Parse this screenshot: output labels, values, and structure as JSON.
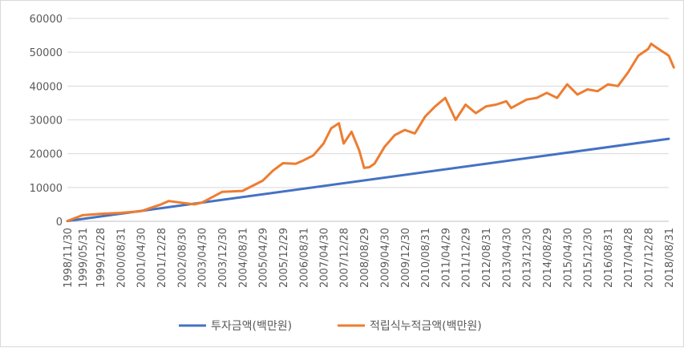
{
  "chart_data": {
    "type": "line",
    "title": "",
    "xlabel": "",
    "ylabel": "",
    "ylim": [
      0,
      60000
    ],
    "yticks": [
      0,
      10000,
      20000,
      30000,
      40000,
      50000,
      60000
    ],
    "grid": "horizontal",
    "legend_position": "bottom",
    "x_tick_labels": [
      "1998/11/30",
      "1999/05/31",
      "1999/12/28",
      "2000/08/31",
      "2001/04/30",
      "2001/12/28",
      "2002/08/30",
      "2003/04/30",
      "2003/12/30",
      "2004/08/31",
      "2005/04/29",
      "2005/12/29",
      "2006/08/31",
      "2007/04/30",
      "2007/12/28",
      "2008/08/29",
      "2009/04/30",
      "2009/12/30",
      "2010/08/31",
      "2011/04/29",
      "2011/12/29",
      "2012/08/31",
      "2013/04/30",
      "2013/12/30",
      "2014/08/29",
      "2015/04/30",
      "2015/12/30",
      "2016/08/31",
      "2017/04/28",
      "2017/12/28",
      "2018/08/31"
    ],
    "series": [
      {
        "name": "투자금액(백만원)",
        "color": "#4472C4",
        "x": [
          "1998/11/30",
          "2018/08/31"
        ],
        "values": [
          100,
          24400
        ]
      },
      {
        "name": "적립식누적금액(백만원)",
        "color": "#ED7D31",
        "x": [
          "1998/11/30",
          "1999/05/31",
          "1999/12/28",
          "2000/08/31",
          "2001/04/30",
          "2001/12/28",
          "2002/03/29",
          "2002/08/30",
          "2003/01/30",
          "2003/04/30",
          "2003/12/30",
          "2004/08/31",
          "2005/04/29",
          "2005/08/31",
          "2005/12/29",
          "2006/05/31",
          "2006/08/31",
          "2006/12/28",
          "2007/04/30",
          "2007/07/31",
          "2007/10/31",
          "2007/12/28",
          "2008/03/31",
          "2008/06/30",
          "2008/08/29",
          "2008/10/31",
          "2008/12/30",
          "2009/04/30",
          "2009/08/31",
          "2009/12/30",
          "2010/04/30",
          "2010/08/31",
          "2010/12/30",
          "2011/04/29",
          "2011/08/31",
          "2011/12/29",
          "2012/04/30",
          "2012/08/31",
          "2012/12/28",
          "2013/04/30",
          "2013/06/28",
          "2013/12/30",
          "2014/04/30",
          "2014/08/29",
          "2014/12/30",
          "2015/04/30",
          "2015/08/31",
          "2015/12/30",
          "2016/04/29",
          "2016/08/31",
          "2016/12/29",
          "2017/04/28",
          "2017/08/31",
          "2017/12/28",
          "2018/01/31",
          "2018/04/30",
          "2018/08/31",
          "2018/10/31"
        ],
        "values": [
          100,
          1800,
          2200,
          2500,
          3000,
          5000,
          6000,
          5500,
          5000,
          5500,
          8700,
          9000,
          12000,
          15000,
          17200,
          17000,
          18000,
          19500,
          23000,
          27500,
          29000,
          23000,
          26500,
          21000,
          15800,
          16000,
          17000,
          22000,
          25500,
          27000,
          26000,
          31000,
          34000,
          36500,
          30000,
          34500,
          32000,
          34000,
          34500,
          35500,
          33500,
          36000,
          36500,
          38000,
          36500,
          40500,
          37500,
          39000,
          38500,
          40500,
          40000,
          44000,
          49000,
          51000,
          52500,
          51000,
          49000,
          45500
        ]
      }
    ]
  }
}
